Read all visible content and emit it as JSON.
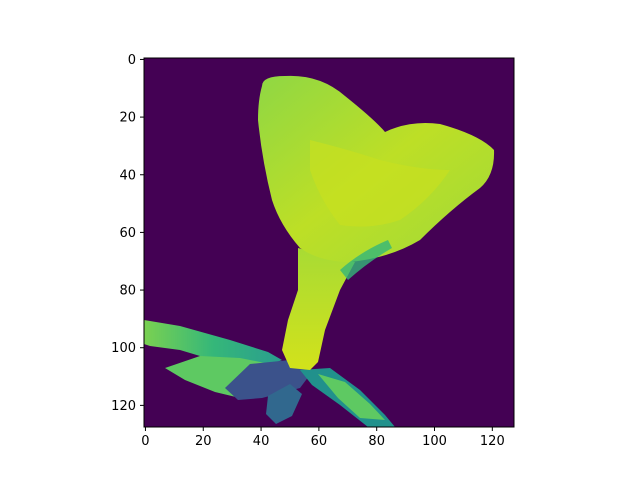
{
  "chart_data": {
    "type": "heatmap",
    "image_shape": [
      128,
      128
    ],
    "colormap": "viridis",
    "value_range": [
      0,
      1
    ],
    "background_value": 0,
    "content": "plant seedling with heart-shaped leaf on dark background",
    "title": "",
    "xlabel": "",
    "ylabel": "",
    "x_axis": {
      "range": [
        -0.5,
        127.5
      ],
      "ticks": [
        0,
        20,
        40,
        60,
        80,
        100,
        120
      ],
      "tick_labels": [
        "0",
        "20",
        "40",
        "60",
        "80",
        "100",
        "120"
      ]
    },
    "y_axis": {
      "range": [
        -0.5,
        127.5
      ],
      "inverted": true,
      "ticks": [
        0,
        20,
        40,
        60,
        80,
        100,
        120
      ],
      "tick_labels": [
        "0",
        "20",
        "40",
        "60",
        "80",
        "100",
        "120"
      ]
    },
    "grid": false,
    "legend": false,
    "colorbar": false
  }
}
